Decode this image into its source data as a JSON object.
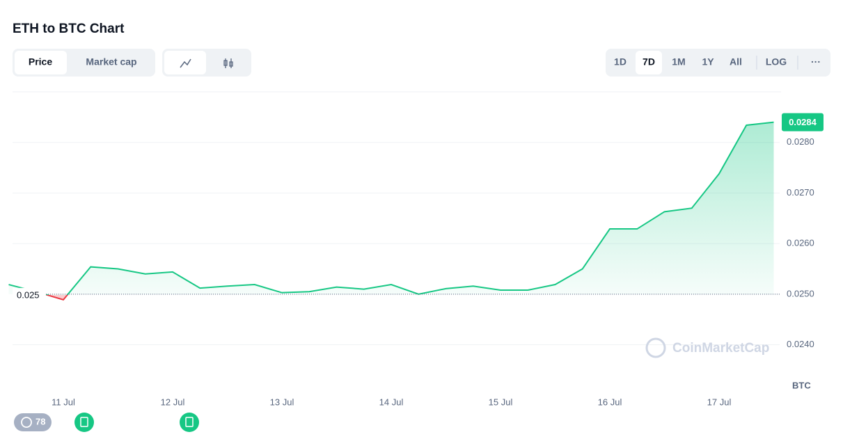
{
  "chart_data": {
    "type": "line",
    "title": "ETH to BTC Chart",
    "categories": [
      null,
      null,
      "11 Jul",
      null,
      null,
      null,
      "12 Jul",
      null,
      null,
      null,
      "13 Jul",
      null,
      null,
      null,
      "14 Jul",
      null,
      null,
      null,
      "15 Jul",
      null,
      null,
      null,
      "16 Jul",
      null,
      null,
      null,
      "17 Jul",
      null,
      null
    ],
    "series": [
      {
        "name": "ETH/BTC",
        "color": "#16c784",
        "values": [
          0.02519,
          0.02505,
          0.02489,
          0.02554,
          0.0255,
          0.0254,
          0.02544,
          0.02512,
          0.02516,
          0.02519,
          0.02503,
          0.02505,
          0.02514,
          0.0251,
          0.02519,
          0.025,
          0.02511,
          0.02516,
          0.02508,
          0.02508,
          0.02519,
          0.0255,
          0.02629,
          0.02629,
          0.02663,
          0.0267,
          0.02738,
          0.02834,
          0.0284
        ]
      }
    ],
    "negative_color": "#ea3943",
    "baseline": {
      "value": 0.025,
      "label": "0.025"
    },
    "current": {
      "value": 0.0284,
      "label": "0.0284"
    },
    "ylim": [
      0.0231,
      0.029
    ],
    "yticks": [
      {
        "value": 0.024,
        "label": "0.0240"
      },
      {
        "value": 0.025,
        "label": "0.0250"
      },
      {
        "value": 0.026,
        "label": "0.0260"
      },
      {
        "value": 0.027,
        "label": "0.0270"
      },
      {
        "value": 0.028,
        "label": "0.0280"
      }
    ],
    "y_unit": "BTC",
    "grid": true
  },
  "ui": {
    "tabs": [
      "Price",
      "Market cap"
    ],
    "ranges": [
      "1D",
      "7D",
      "1M",
      "1Y",
      "All"
    ],
    "log": "LOG",
    "more": "···",
    "watermark": "CoinMarketCap",
    "badge": "78"
  }
}
